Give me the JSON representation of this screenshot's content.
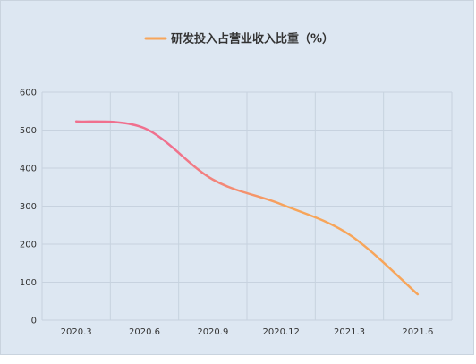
{
  "chart_data": {
    "type": "line",
    "title": "",
    "xlabel": "",
    "ylabel": "",
    "categories": [
      "2020.3",
      "2020.6",
      "2020.9",
      "2020.12",
      "2021.3",
      "2021.6"
    ],
    "series": [
      {
        "name": "研发投入占营业收入比重（%）",
        "values": [
          523,
          505,
          370,
          305,
          225,
          68
        ],
        "color_start": "#f0708e",
        "color_end": "#f7a55a"
      }
    ],
    "ylim": [
      0,
      600
    ],
    "yticks": [
      0,
      100,
      200,
      300,
      400,
      500,
      600
    ],
    "grid": true,
    "legend_position": "top-center"
  }
}
